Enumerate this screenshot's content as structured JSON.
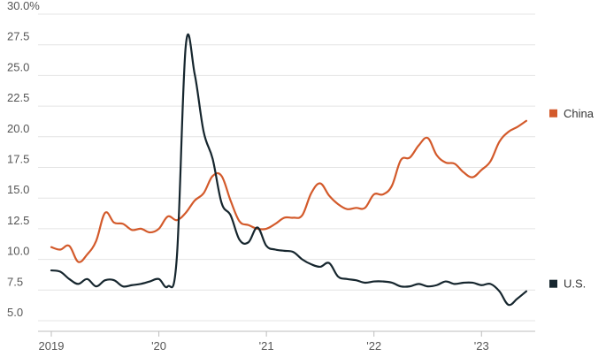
{
  "chart_data": {
    "type": "line",
    "y_tick_labels": [
      "5.0",
      "7.5",
      "10.0",
      "12.5",
      "15.0",
      "17.5",
      "20.0",
      "22.5",
      "25.0",
      "27.5",
      "30.0%"
    ],
    "x_tick_labels": [
      "2019",
      "'20",
      "'21",
      "'22",
      "'23"
    ],
    "ylim": [
      5,
      30
    ],
    "xlim": [
      0,
      53.5
    ],
    "grid": true,
    "legend_placement": "right, at line ends",
    "series": [
      {
        "name": "China",
        "color": "#d35a2b",
        "x": [
          0,
          1,
          2,
          3,
          4,
          5,
          6,
          7,
          8,
          9,
          10,
          11,
          12,
          13,
          14,
          15,
          16,
          17,
          18,
          19,
          20,
          21,
          22,
          23,
          24,
          25,
          26,
          27,
          28,
          29,
          30,
          31,
          32,
          33,
          34,
          35,
          36,
          37,
          38,
          39,
          40,
          41,
          42,
          43,
          44,
          45,
          46,
          47,
          48,
          49,
          50,
          51,
          52,
          53
        ],
        "values": [
          11.0,
          10.8,
          11.1,
          9.8,
          10.4,
          11.5,
          13.8,
          13.0,
          12.9,
          12.4,
          12.5,
          12.2,
          12.5,
          13.5,
          13.2,
          13.8,
          14.8,
          15.4,
          16.8,
          16.8,
          14.8,
          13.1,
          12.8,
          12.5,
          12.5,
          12.9,
          13.4,
          13.4,
          13.6,
          15.4,
          16.2,
          15.2,
          14.5,
          14.1,
          14.2,
          14.2,
          15.3,
          15.3,
          16.0,
          18.1,
          18.3,
          19.3,
          19.9,
          18.5,
          17.9,
          17.8,
          17.1,
          16.7,
          17.3,
          18.0,
          19.6,
          20.4,
          20.8,
          21.3
        ]
      },
      {
        "name": "U.S.",
        "color": "#16262e",
        "x": [
          0,
          1,
          2,
          3,
          4,
          5,
          6,
          7,
          8,
          9,
          10,
          11,
          12,
          13,
          14,
          15,
          16,
          17,
          18,
          19,
          20,
          21,
          22,
          23,
          24,
          25,
          26,
          27,
          28,
          29,
          30,
          31,
          32,
          33,
          34,
          35,
          36,
          37,
          38,
          39,
          40,
          41,
          42,
          43,
          44,
          45,
          46,
          47,
          48,
          49,
          50,
          51,
          52,
          53
        ],
        "values": [
          9.1,
          9.0,
          8.4,
          8.0,
          8.4,
          7.8,
          8.3,
          8.3,
          7.8,
          7.9,
          8.0,
          8.2,
          8.4,
          7.8,
          10.1,
          27.4,
          25.1,
          20.4,
          18.2,
          14.6,
          13.6,
          11.6,
          11.4,
          12.6,
          11.1,
          10.8,
          10.7,
          10.6,
          10.0,
          9.6,
          9.4,
          9.7,
          8.6,
          8.4,
          8.3,
          8.1,
          8.2,
          8.2,
          8.1,
          7.8,
          7.8,
          8.0,
          7.8,
          7.9,
          8.2,
          8.0,
          8.1,
          8.1,
          7.9,
          8.0,
          7.4,
          6.3,
          6.8,
          7.4
        ]
      }
    ]
  }
}
